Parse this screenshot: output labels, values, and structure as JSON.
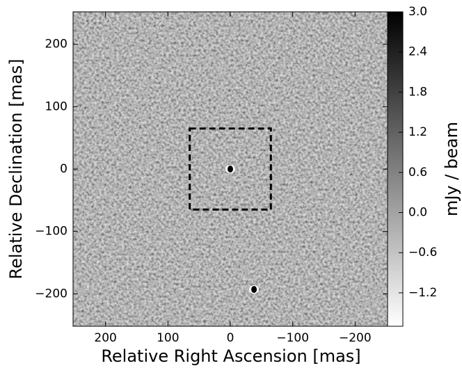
{
  "chart_data": {
    "type": "image",
    "xlabel": "Relative Right Ascension [mas]",
    "ylabel": "Relative Declination [mas]",
    "xlim": [
      252,
      -252
    ],
    "ylim": [
      -252,
      252
    ],
    "xticks": [
      200,
      100,
      0,
      {
        "value": -100,
        "label": "−100"
      },
      {
        "value": -200,
        "label": "−200"
      }
    ],
    "yticks": [
      200,
      100,
      0,
      {
        "value": -100,
        "label": "−100"
      },
      {
        "value": -200,
        "label": "−200"
      }
    ],
    "colormap": "gray_r",
    "colorbar": {
      "label": "mJy / beam",
      "lim": [
        -1.7,
        3.0
      ],
      "ticks": [
        {
          "value": 3,
          "label": "3.0"
        },
        {
          "value": 2.4,
          "label": "2.4"
        },
        {
          "value": 1.8,
          "label": "1.8"
        },
        {
          "value": 1.2,
          "label": "1.2"
        },
        {
          "value": 0.6,
          "label": "0.6"
        },
        {
          "value": 0,
          "label": "0.0"
        },
        {
          "value": -0.6,
          "label": "−0.6"
        },
        {
          "value": -1.2,
          "label": "−1.2"
        }
      ]
    },
    "region": {
      "x": [
        65,
        -65
      ],
      "y": [
        -65,
        65
      ]
    },
    "sources": [
      {
        "x": 0,
        "y": 0
      },
      {
        "x": -38,
        "y": -193
      }
    ]
  }
}
